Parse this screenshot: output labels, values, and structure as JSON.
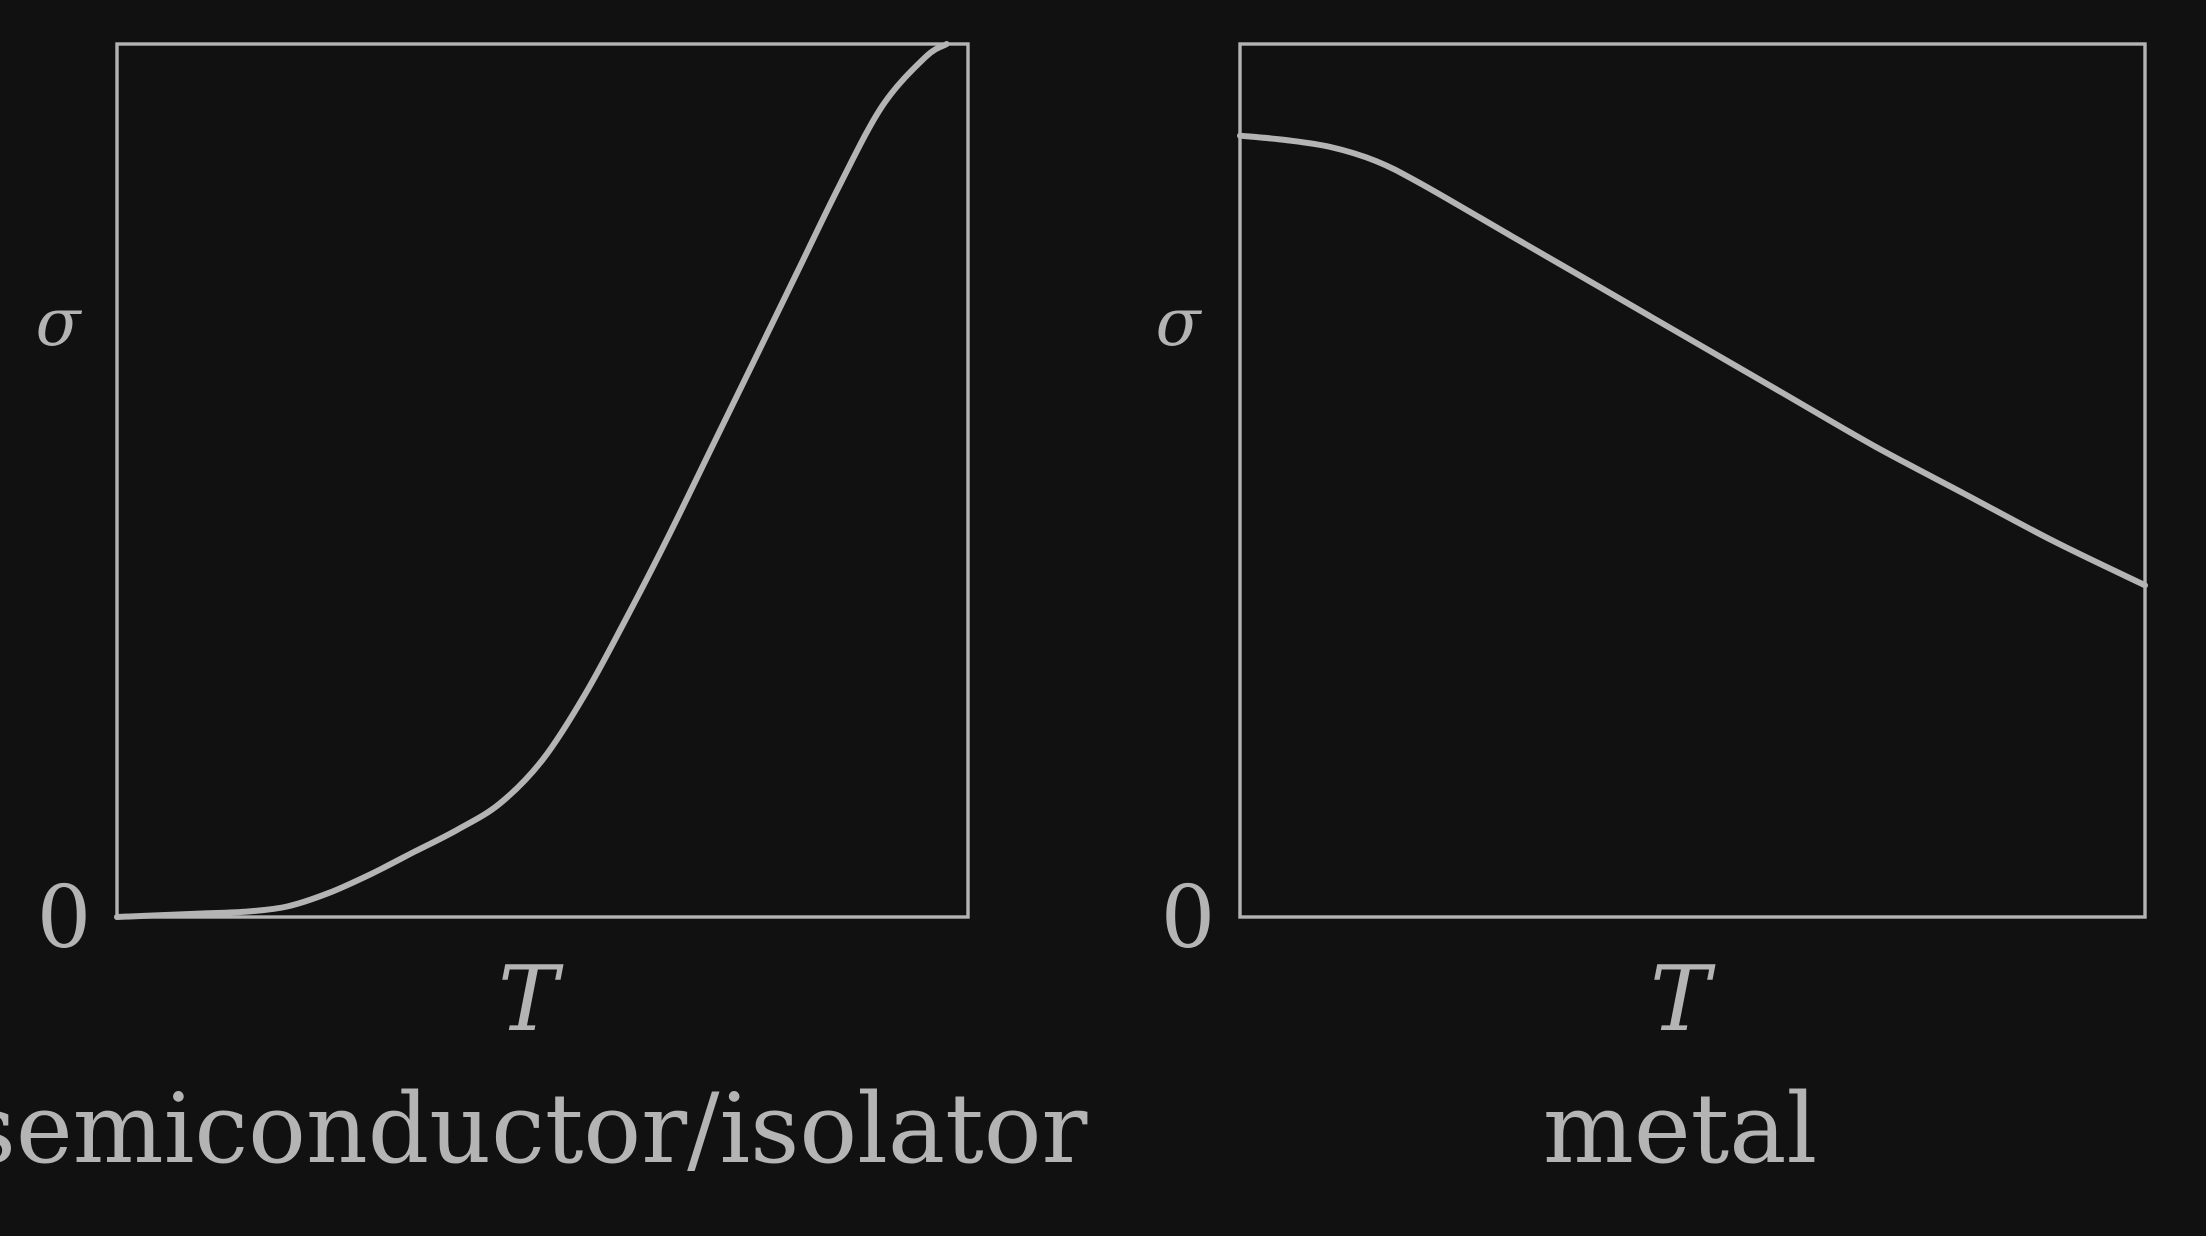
{
  "chart_data": [
    {
      "type": "line",
      "title": "semiconductor/isolator",
      "xlabel": "T",
      "ylabel": "σ",
      "y_tick_labels": [
        "0"
      ],
      "xlim": [
        0,
        1
      ],
      "ylim": [
        0,
        1
      ],
      "grid": false,
      "series": [
        {
          "x": [
            0,
            0.05,
            0.1,
            0.15,
            0.2,
            0.25,
            0.3,
            0.35,
            0.4,
            0.45,
            0.5,
            0.55,
            0.6,
            0.65,
            0.7,
            0.75,
            0.8,
            0.85,
            0.9,
            0.95,
            0.975
          ],
          "values": [
            0,
            0.002,
            0.004,
            0.006,
            0.012,
            0.028,
            0.05,
            0.075,
            0.1,
            0.13,
            0.18,
            0.255,
            0.345,
            0.44,
            0.54,
            0.64,
            0.74,
            0.84,
            0.93,
            0.985,
            1.0
          ]
        }
      ]
    },
    {
      "type": "line",
      "title": "metal",
      "xlabel": "T",
      "ylabel": "σ",
      "y_tick_labels": [
        "0"
      ],
      "xlim": [
        0,
        1
      ],
      "ylim": [
        0,
        1
      ],
      "grid": false,
      "series": [
        {
          "x": [
            0,
            0.05,
            0.1,
            0.15,
            0.2,
            0.3,
            0.4,
            0.5,
            0.6,
            0.7,
            0.8,
            0.9,
            1.0
          ],
          "values": [
            0.895,
            0.89,
            0.882,
            0.866,
            0.84,
            0.78,
            0.72,
            0.66,
            0.6,
            0.54,
            0.485,
            0.43,
            0.38
          ]
        }
      ]
    }
  ]
}
